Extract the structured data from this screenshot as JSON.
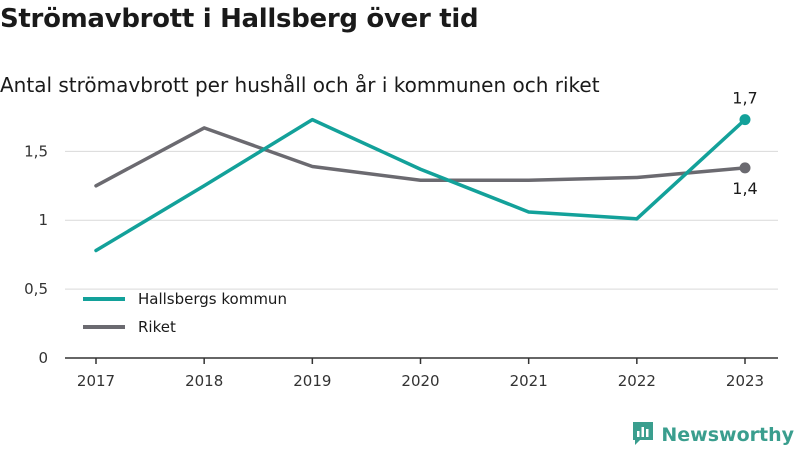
{
  "title": "Strömavbrott i Hallsberg över tid",
  "subtitle": "Antal strömavbrott per hushåll och år i kommunen och riket",
  "brand": {
    "name": "Newsworthy",
    "icon": "newsworthy-logo-icon"
  },
  "colors": {
    "primary": "#13a19a",
    "secondary": "#6b6a70",
    "grid": "#d9d9d9",
    "axis": "#333333"
  },
  "chart_data": {
    "type": "line",
    "x": [
      "2017",
      "2018",
      "2019",
      "2020",
      "2021",
      "2022",
      "2023"
    ],
    "ylim": [
      0,
      1.8
    ],
    "y_ticks": [
      {
        "value": 0,
        "label": "0"
      },
      {
        "value": 0.5,
        "label": "0,5"
      },
      {
        "value": 1,
        "label": "1"
      },
      {
        "value": 1.5,
        "label": "1,5"
      }
    ],
    "grid": true,
    "legend_position": "bottom-left",
    "series": [
      {
        "name": "Hallsbergs kommun",
        "color": "#13a19a",
        "values": [
          0.78,
          1.25,
          1.73,
          1.37,
          1.06,
          1.01,
          1.73
        ],
        "end_label": "1,7"
      },
      {
        "name": "Riket",
        "color": "#6b6a70",
        "values": [
          1.25,
          1.67,
          1.39,
          1.29,
          1.29,
          1.31,
          1.38
        ],
        "end_label": "1,4"
      }
    ]
  }
}
